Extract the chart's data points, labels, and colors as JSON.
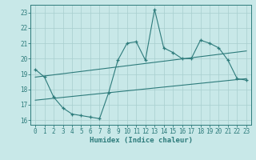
{
  "x": [
    0,
    1,
    2,
    3,
    4,
    5,
    6,
    7,
    8,
    9,
    10,
    11,
    12,
    13,
    14,
    15,
    16,
    17,
    18,
    19,
    20,
    21,
    22,
    23
  ],
  "y_main": [
    19.3,
    18.8,
    17.5,
    16.8,
    16.4,
    16.3,
    16.2,
    16.1,
    17.8,
    19.9,
    21.0,
    21.1,
    19.9,
    23.2,
    20.7,
    20.4,
    20.0,
    20.0,
    21.2,
    21.0,
    20.7,
    19.9,
    18.7,
    18.6
  ],
  "upper_line_y": [
    18.8,
    20.5
  ],
  "lower_line_y": [
    17.3,
    18.7
  ],
  "line_color": "#2d7b7b",
  "bg_color": "#c8e8e8",
  "grid_color": "#a8cece",
  "xlabel": "Humidex (Indice chaleur)",
  "ylim": [
    15.7,
    23.5
  ],
  "xlim": [
    -0.5,
    23.5
  ],
  "yticks": [
    16,
    17,
    18,
    19,
    20,
    21,
    22,
    23
  ],
  "xticks": [
    0,
    1,
    2,
    3,
    4,
    5,
    6,
    7,
    8,
    9,
    10,
    11,
    12,
    13,
    14,
    15,
    16,
    17,
    18,
    19,
    20,
    21,
    22,
    23
  ]
}
